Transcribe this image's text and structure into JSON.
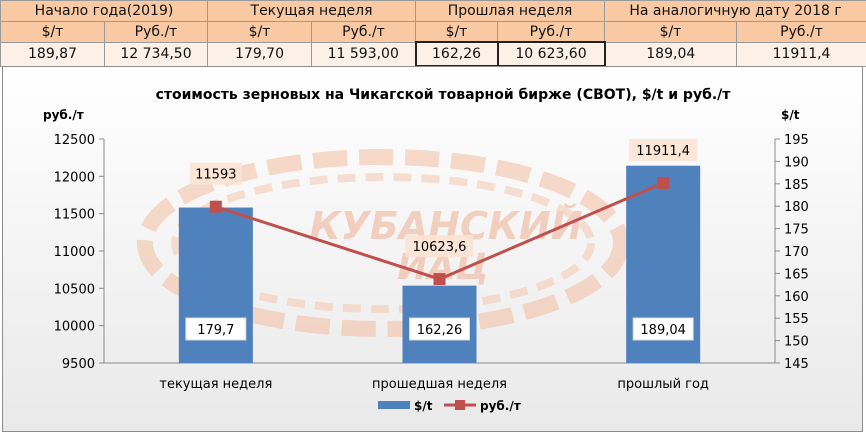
{
  "table": {
    "groups": [
      "Начало года(2019)",
      "Текущая неделя",
      "Прошлая неделя",
      "На аналогичную дату 2018 г"
    ],
    "units": [
      "$/т",
      "Руб./т",
      "$/т",
      "Руб./т",
      "$/т",
      "Руб./т",
      "$/т",
      "Руб./т"
    ],
    "values": [
      "189,87",
      "12 734,50",
      "179,70",
      "11 593,00",
      "162,26",
      "10 623,60",
      "189,04",
      "11911,4"
    ]
  },
  "watermark": {
    "line1": "КУБАНСКИЙ",
    "line2": "ИАЦ"
  },
  "colors": {
    "bar": "#4f81bd",
    "line": "#c0504d",
    "header_bg": "#f8c9a2",
    "value_bg": "#fdf0e6",
    "label_bg": "#fbe3d3"
  },
  "chart_data": {
    "type": "bar+line",
    "title": "стоимость зерновых на Чикагской товарной бирже (CBOT), $/t и руб./т",
    "ylabel_left": "руб./т",
    "ylabel_right": "$/t",
    "categories": [
      "текущая неделя",
      "прошедшая неделя",
      "прошлый год"
    ],
    "left_axis": {
      "min": 9500,
      "max": 12500,
      "ticks": [
        "9500",
        "10000",
        "10500",
        "11000",
        "11500",
        "12000",
        "12500"
      ]
    },
    "right_axis": {
      "min": 145,
      "max": 195,
      "ticks": [
        "145",
        "150",
        "155",
        "160",
        "165",
        "170",
        "175",
        "180",
        "185",
        "190",
        "195"
      ]
    },
    "series": [
      {
        "name": "$/t",
        "kind": "bar",
        "axis": "right",
        "values": [
          179.7,
          162.26,
          189.04
        ],
        "labels": [
          "179,7",
          "162,26",
          "189,04"
        ]
      },
      {
        "name": "руб./т",
        "kind": "line",
        "axis": "left",
        "values": [
          11593,
          10623.6,
          11911.4
        ],
        "labels": [
          "11593",
          "10623,6",
          "11911,4"
        ]
      }
    ],
    "legend": "bottom",
    "grid": false
  }
}
